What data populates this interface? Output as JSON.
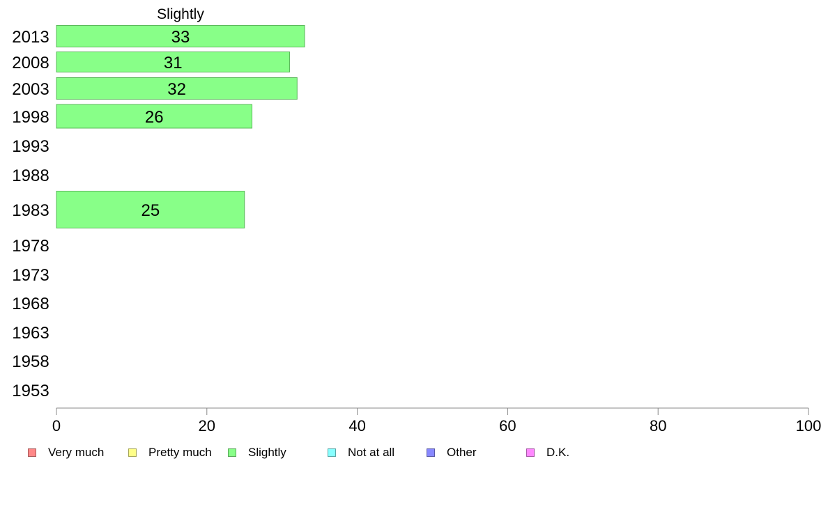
{
  "chart_data": {
    "type": "bar",
    "orientation": "horizontal",
    "title": "Slightly",
    "categories": [
      "2013",
      "2008",
      "2003",
      "1998",
      "1993",
      "1988",
      "1983",
      "1978",
      "1973",
      "1968",
      "1963",
      "1958",
      "1953"
    ],
    "series": [
      {
        "name": "Slightly",
        "color": "#88ff88",
        "values": [
          33,
          31,
          32,
          26,
          null,
          null,
          25,
          null,
          null,
          null,
          null,
          null,
          null
        ],
        "value_labels": [
          "33",
          "31",
          "32",
          "26",
          "",
          "",
          "25",
          "",
          "",
          "",
          "",
          "",
          ""
        ]
      }
    ],
    "xlim": [
      0,
      100
    ],
    "xticks": [
      "0",
      "20",
      "40",
      "60",
      "80",
      "100"
    ],
    "grid": false,
    "legend": {
      "position": "bottom",
      "entries": [
        {
          "label": "Very much",
          "color": "#ff8888"
        },
        {
          "label": "Pretty much",
          "color": "#ffff88"
        },
        {
          "label": "Slightly",
          "color": "#88ff88"
        },
        {
          "label": "Not at all",
          "color": "#88ffff"
        },
        {
          "label": "Other",
          "color": "#8888ff"
        },
        {
          "label": "D.K.",
          "color": "#ff88ff"
        }
      ]
    }
  }
}
